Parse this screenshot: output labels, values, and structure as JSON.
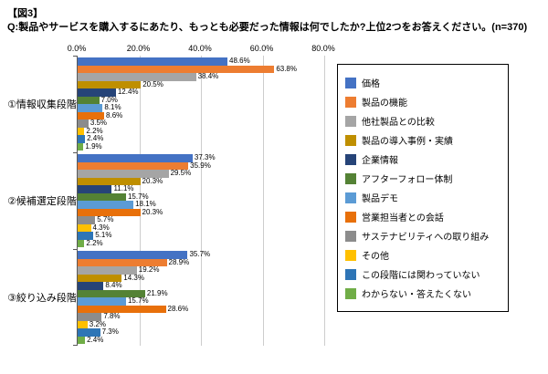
{
  "figure_tag": "【図3】",
  "question": "Q:製品やサービスを購入するにあたり、もっとも必要だった情報は何でしたか?上位2つをお答えください。(n=370)",
  "chart_data": {
    "type": "bar",
    "orientation": "horizontal",
    "title": "",
    "xlabel": "",
    "ylabel": "",
    "xlim": [
      0,
      80
    ],
    "grid": true,
    "legend_position": "right",
    "axis_ticks": [
      "0.0%",
      "20.0%",
      "40.0%",
      "60.0%",
      "80.0%"
    ],
    "categories": [
      "①情報収集段階",
      "②候補選定段階",
      "③絞り込み段階"
    ],
    "series": [
      {
        "name": "価格",
        "color": "#4472C4",
        "values": [
          48.6,
          37.3,
          35.7
        ]
      },
      {
        "name": "製品の機能",
        "color": "#ED7D31",
        "values": [
          63.8,
          35.9,
          28.9
        ]
      },
      {
        "name": "他社製品との比較",
        "color": "#A5A5A5",
        "values": [
          38.4,
          29.5,
          19.2
        ]
      },
      {
        "name": "製品の導入事例・実績",
        "color": "#BF8F00",
        "values": [
          20.5,
          20.3,
          14.3
        ]
      },
      {
        "name": "企業情報",
        "color": "#264478",
        "values": [
          12.4,
          11.1,
          8.4
        ]
      },
      {
        "name": "アフターフォロー体制",
        "color": "#548235",
        "values": [
          7.0,
          15.7,
          21.9
        ]
      },
      {
        "name": "製品デモ",
        "color": "#5B9BD5",
        "values": [
          8.1,
          18.1,
          15.7
        ]
      },
      {
        "name": "営業担当者との会話",
        "color": "#E8700A",
        "values": [
          8.6,
          20.3,
          28.6
        ]
      },
      {
        "name": "サステナビリティへの取り組み",
        "color": "#8C8C8C",
        "values": [
          3.5,
          5.7,
          7.8
        ]
      },
      {
        "name": "その他",
        "color": "#FFC000",
        "values": [
          2.2,
          4.3,
          3.2
        ]
      },
      {
        "name": "この段階には関わっていない",
        "color": "#2E75B6",
        "values": [
          2.4,
          5.1,
          7.3
        ]
      },
      {
        "name": "わからない・答えたくない",
        "color": "#70AD47",
        "values": [
          1.9,
          2.2,
          2.4
        ]
      }
    ]
  }
}
